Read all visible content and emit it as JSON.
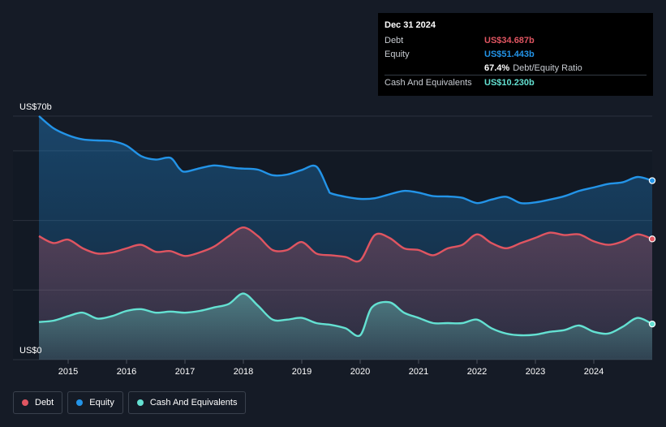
{
  "tooltip": {
    "date": "Dec 31 2024",
    "debt_label": "Debt",
    "debt_value": "US$34.687b",
    "equity_label": "Equity",
    "equity_value": "US$51.443b",
    "ratio_pct": "67.4%",
    "ratio_label": "Debt/Equity Ratio",
    "cash_label": "Cash And Equivalents",
    "cash_value": "US$10.230b"
  },
  "legend": [
    {
      "label": "Debt",
      "color": "#e05561"
    },
    {
      "label": "Equity",
      "color": "#2394e8"
    },
    {
      "label": "Cash And Equivalents",
      "color": "#64e1d2"
    }
  ],
  "colors": {
    "debt": "#e05561",
    "equity": "#2394e8",
    "cash": "#64e1d2"
  },
  "chart_data": {
    "type": "area",
    "title": "",
    "xlabel": "",
    "ylabel": "",
    "ylim": [
      0,
      70
    ],
    "xlim": [
      2014.5,
      2025.0
    ],
    "y_tick_labels": [
      {
        "value": 70,
        "label": "US$70b"
      },
      {
        "value": 0,
        "label": "US$0"
      }
    ],
    "x_ticks": [
      2015,
      2016,
      2017,
      2018,
      2019,
      2020,
      2021,
      2022,
      2023,
      2024
    ],
    "x_tick_labels": [
      "2015",
      "2016",
      "2017",
      "2018",
      "2019",
      "2020",
      "2021",
      "2022",
      "2023",
      "2024"
    ],
    "series": [
      {
        "name": "Equity",
        "key": "equity",
        "x": [
          2014.5,
          2014.75,
          2015.0,
          2015.25,
          2015.5,
          2015.75,
          2016.0,
          2016.25,
          2016.5,
          2016.75,
          2016.9,
          2017.0,
          2017.25,
          2017.5,
          2017.75,
          2017.9,
          2018.0,
          2018.25,
          2018.5,
          2018.75,
          2019.0,
          2019.25,
          2019.45,
          2019.5,
          2019.75,
          2020.0,
          2020.25,
          2020.5,
          2020.75,
          2021.0,
          2021.25,
          2021.5,
          2021.75,
          2022.0,
          2022.25,
          2022.5,
          2022.75,
          2023.0,
          2023.25,
          2023.5,
          2023.75,
          2024.0,
          2024.25,
          2024.5,
          2024.75,
          2025.0
        ],
        "values": [
          70.0,
          66.5,
          64.5,
          63.3,
          63.0,
          62.8,
          61.5,
          58.5,
          57.5,
          58.0,
          55.0,
          54.0,
          55.0,
          55.8,
          55.3,
          55.0,
          54.9,
          54.6,
          53.0,
          53.2,
          54.5,
          55.5,
          49.0,
          47.8,
          46.8,
          46.2,
          46.4,
          47.5,
          48.5,
          48.0,
          47.0,
          46.9,
          46.5,
          45.0,
          46.0,
          46.8,
          45.0,
          45.2,
          46.0,
          47.0,
          48.5,
          49.5,
          50.5,
          51.0,
          52.5,
          51.443
        ]
      },
      {
        "name": "Debt",
        "key": "debt",
        "x": [
          2014.5,
          2014.75,
          2015.0,
          2015.25,
          2015.5,
          2015.75,
          2016.0,
          2016.25,
          2016.5,
          2016.75,
          2017.0,
          2017.25,
          2017.5,
          2017.75,
          2018.0,
          2018.25,
          2018.5,
          2018.75,
          2019.0,
          2019.25,
          2019.5,
          2019.75,
          2020.0,
          2020.25,
          2020.5,
          2020.75,
          2021.0,
          2021.25,
          2021.5,
          2021.75,
          2022.0,
          2022.25,
          2022.5,
          2022.75,
          2023.0,
          2023.25,
          2023.5,
          2023.75,
          2024.0,
          2024.25,
          2024.5,
          2024.75,
          2025.0
        ],
        "values": [
          35.5,
          33.5,
          34.5,
          32.0,
          30.5,
          30.8,
          32.0,
          33.0,
          31.0,
          31.2,
          29.8,
          30.8,
          32.5,
          35.5,
          38.0,
          35.5,
          31.5,
          31.5,
          33.8,
          30.5,
          30.0,
          29.5,
          28.5,
          35.8,
          35.0,
          32.0,
          31.5,
          30.0,
          32.0,
          33.0,
          36.0,
          33.5,
          32.0,
          33.5,
          35.0,
          36.5,
          35.8,
          36.0,
          34.0,
          33.0,
          34.0,
          36.0,
          34.687
        ]
      },
      {
        "name": "Cash And Equivalents",
        "key": "cash",
        "x": [
          2014.5,
          2014.75,
          2015.0,
          2015.25,
          2015.5,
          2015.75,
          2016.0,
          2016.25,
          2016.5,
          2016.75,
          2017.0,
          2017.25,
          2017.5,
          2017.75,
          2018.0,
          2018.25,
          2018.5,
          2018.75,
          2019.0,
          2019.25,
          2019.5,
          2019.75,
          2020.0,
          2020.2,
          2020.5,
          2020.75,
          2021.0,
          2021.25,
          2021.5,
          2021.75,
          2022.0,
          2022.25,
          2022.5,
          2022.75,
          2023.0,
          2023.25,
          2023.5,
          2023.75,
          2024.0,
          2024.25,
          2024.5,
          2024.75,
          2025.0
        ],
        "values": [
          10.8,
          11.2,
          12.5,
          13.5,
          11.8,
          12.5,
          14.0,
          14.5,
          13.5,
          13.8,
          13.5,
          14.0,
          15.0,
          16.0,
          19.0,
          15.5,
          11.5,
          11.5,
          12.0,
          10.5,
          10.0,
          9.0,
          7.0,
          15.0,
          16.5,
          13.5,
          12.0,
          10.5,
          10.5,
          10.5,
          11.5,
          9.0,
          7.5,
          7.0,
          7.2,
          8.0,
          8.5,
          9.8,
          8.0,
          7.5,
          9.5,
          12.0,
          10.23
        ]
      }
    ]
  }
}
